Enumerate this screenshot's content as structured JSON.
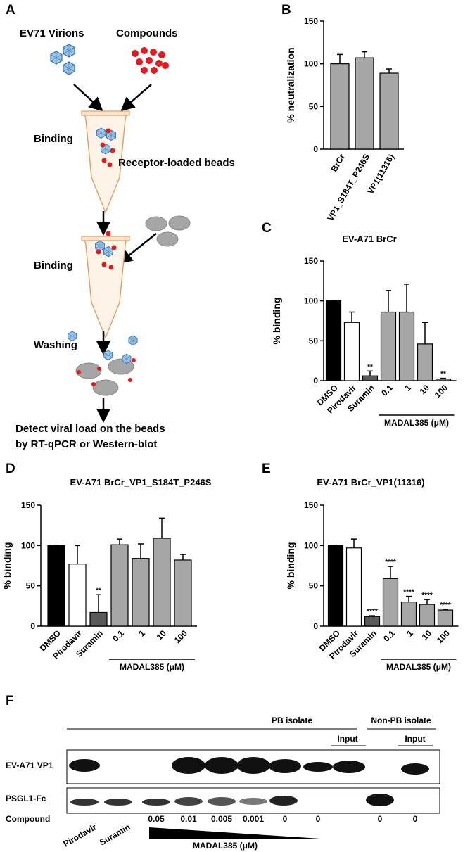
{
  "panel_a": {
    "letter": "A",
    "labels": {
      "virions": "EV71 Virions",
      "compounds": "Compounds",
      "binding_1": "Binding",
      "beads": "Receptor-loaded beads",
      "binding_2": "Binding",
      "washing": "Washing"
    },
    "result": [
      "Detect viral load on the beads",
      "by RT-qPCR or Western-blot"
    ]
  },
  "chart_data": [
    {
      "panel": "B",
      "type": "bar",
      "y_label": "% neutralization",
      "categories": [
        "BrCr",
        "VP1_S184T_P246S",
        "VP1(11316)"
      ],
      "values": [
        100,
        107,
        89
      ],
      "errors": [
        11,
        7,
        5
      ],
      "colors": [
        "#a6a6a6",
        "#a6a6a6",
        "#a6a6a6"
      ],
      "ylim": [
        0,
        150
      ],
      "yticks": [
        0,
        50,
        100,
        150
      ]
    },
    {
      "panel": "C",
      "type": "bar",
      "title": "EV-A71 BrCr",
      "y_label": "% binding",
      "categories": [
        "DMSO",
        "Pirodavir",
        "Suramin",
        "0.1",
        "1",
        "10",
        "100"
      ],
      "values": [
        100,
        73,
        6,
        86,
        86,
        46,
        2
      ],
      "errors": [
        0,
        13,
        6,
        27,
        35,
        27,
        1
      ],
      "annotations": [
        null,
        null,
        "**",
        null,
        null,
        null,
        "**"
      ],
      "colors": [
        "#000000",
        "#ffffff",
        "#595959",
        "#a6a6a6",
        "#a6a6a6",
        "#a6a6a6",
        "#a6a6a6"
      ],
      "group_label": "MADAL385 (μM)",
      "ylim": [
        0,
        150
      ],
      "yticks": [
        0,
        50,
        100,
        150
      ]
    },
    {
      "panel": "D",
      "type": "bar",
      "title": "EV-A71 BrCr_VP1_S184T_P246S",
      "y_label": "% binding",
      "categories": [
        "DMSO",
        "Pirodavir",
        "Suramin",
        "0.1",
        "1",
        "10",
        "100"
      ],
      "values": [
        100,
        77,
        17,
        101,
        84,
        109,
        82
      ],
      "errors": [
        0,
        23,
        22,
        7,
        18,
        25,
        7
      ],
      "annotations": [
        null,
        null,
        "**",
        null,
        null,
        null,
        null
      ],
      "colors": [
        "#000000",
        "#ffffff",
        "#595959",
        "#a6a6a6",
        "#a6a6a6",
        "#a6a6a6",
        "#a6a6a6"
      ],
      "group_label": "MADAL385 (μM)",
      "ylim": [
        0,
        150
      ],
      "yticks": [
        0,
        50,
        100,
        150
      ]
    },
    {
      "panel": "E",
      "type": "bar",
      "title": "EV-A71 BrCr_VP1(11316)",
      "y_label": "% binding",
      "categories": [
        "DMSO",
        "Pirodavir",
        "Suramin",
        "0.1",
        "1",
        "10",
        "100"
      ],
      "values": [
        100,
        97,
        12,
        59,
        30,
        27,
        20
      ],
      "errors": [
        0,
        11,
        1,
        15,
        7,
        6,
        1
      ],
      "annotations": [
        null,
        null,
        "****",
        "****",
        "****",
        "****",
        "****"
      ],
      "colors": [
        "#000000",
        "#ffffff",
        "#595959",
        "#a6a6a6",
        "#a6a6a6",
        "#a6a6a6",
        "#a6a6a6"
      ],
      "group_label": "MADAL385 (μM)",
      "ylim": [
        0,
        150
      ],
      "yticks": [
        0,
        50,
        100,
        150
      ]
    }
  ],
  "panel_f": {
    "letter": "F",
    "groups": [
      "PB isolate",
      "Non-PB isolate"
    ],
    "input_labels": [
      "Input",
      "Input"
    ],
    "rows": [
      "EV-A71 VP1",
      "PSGL1-Fc"
    ],
    "compound_label": "Compound",
    "compounds": [
      "Pirodavir",
      "Suramin"
    ],
    "concentrations": [
      "0.05",
      "0.01",
      "0.005",
      "0.001",
      "0",
      "0",
      "0",
      "0"
    ],
    "gradient_label": "MADAL385 (μM)"
  }
}
